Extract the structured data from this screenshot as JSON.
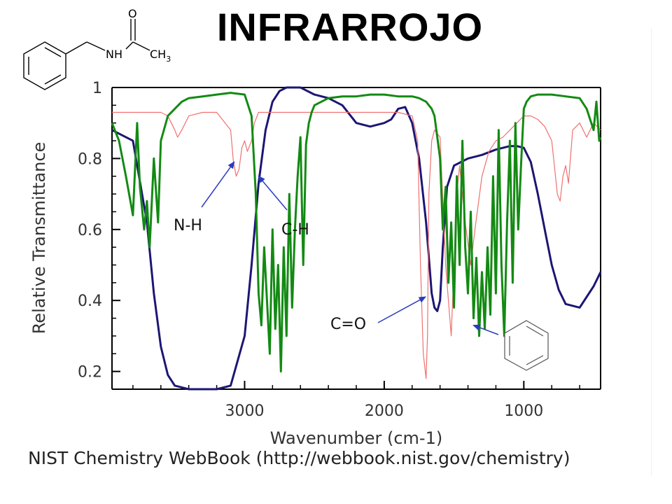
{
  "slide": {
    "title": "INFRARROJO",
    "source": "NIST Chemistry WebBook (http://webbook.nist.gov/chemistry)"
  },
  "molecule": {
    "atom_labels": {
      "oxygen": "O",
      "amine": "NH",
      "methyl": "CH",
      "methyl_subscript": "3"
    }
  },
  "chart_data": {
    "type": "line",
    "title": "",
    "xlabel": "Wavenumber (cm-1)",
    "ylabel": "Relative Transmittance",
    "xlim": [
      3950,
      450
    ],
    "ylim": [
      0.15,
      1.0
    ],
    "x_ticks": [
      3000,
      2000,
      1000
    ],
    "y_ticks": [
      0.2,
      0.4,
      0.6,
      0.8,
      1
    ],
    "y_tick_labels": [
      "0.2",
      "0.4",
      "0.6",
      "0.8",
      "1"
    ],
    "grid": false,
    "series": [
      {
        "color": "#1c1674",
        "x": [
          3950,
          3800,
          3700,
          3650,
          3600,
          3550,
          3500,
          3400,
          3300,
          3200,
          3100,
          3000,
          2950,
          2900,
          2850,
          2800,
          2750,
          2700,
          2600,
          2500,
          2400,
          2300,
          2200,
          2100,
          2000,
          1950,
          1900,
          1850,
          1800,
          1750,
          1700,
          1680,
          1660,
          1640,
          1620,
          1600,
          1580,
          1550,
          1500,
          1450,
          1400,
          1300,
          1200,
          1100,
          1050,
          1000,
          950,
          900,
          850,
          800,
          750,
          700,
          600,
          500,
          450
        ],
        "y": [
          0.88,
          0.85,
          0.62,
          0.42,
          0.27,
          0.19,
          0.16,
          0.15,
          0.15,
          0.15,
          0.16,
          0.3,
          0.5,
          0.73,
          0.88,
          0.96,
          0.99,
          1.0,
          1.0,
          0.98,
          0.97,
          0.95,
          0.9,
          0.89,
          0.9,
          0.91,
          0.94,
          0.945,
          0.9,
          0.8,
          0.62,
          0.52,
          0.42,
          0.38,
          0.37,
          0.4,
          0.55,
          0.72,
          0.78,
          0.79,
          0.8,
          0.81,
          0.825,
          0.835,
          0.835,
          0.83,
          0.79,
          0.7,
          0.6,
          0.5,
          0.43,
          0.39,
          0.38,
          0.44,
          0.48
        ]
      },
      {
        "color": "#f07070",
        "x": [
          3950,
          3800,
          3700,
          3600,
          3550,
          3500,
          3480,
          3450,
          3400,
          3300,
          3200,
          3100,
          3080,
          3060,
          3040,
          3020,
          3000,
          2980,
          2950,
          2930,
          2900,
          2850,
          2800,
          2700,
          2600,
          2400,
          2200,
          2000,
          1900,
          1800,
          1760,
          1740,
          1720,
          1700,
          1690,
          1680,
          1660,
          1640,
          1600,
          1560,
          1520,
          1500,
          1480,
          1460,
          1420,
          1380,
          1350,
          1300,
          1250,
          1200,
          1150,
          1100,
          1050,
          1000,
          950,
          900,
          850,
          800,
          760,
          740,
          720,
          700,
          680,
          650,
          600,
          550,
          500,
          450
        ],
        "y": [
          0.93,
          0.93,
          0.93,
          0.93,
          0.92,
          0.88,
          0.86,
          0.88,
          0.92,
          0.93,
          0.93,
          0.88,
          0.79,
          0.75,
          0.77,
          0.83,
          0.85,
          0.82,
          0.85,
          0.9,
          0.93,
          0.93,
          0.93,
          0.93,
          0.93,
          0.93,
          0.93,
          0.93,
          0.93,
          0.92,
          0.85,
          0.5,
          0.25,
          0.18,
          0.3,
          0.7,
          0.85,
          0.88,
          0.86,
          0.5,
          0.3,
          0.5,
          0.7,
          0.78,
          0.62,
          0.5,
          0.6,
          0.75,
          0.82,
          0.85,
          0.86,
          0.88,
          0.9,
          0.92,
          0.92,
          0.91,
          0.89,
          0.85,
          0.7,
          0.68,
          0.75,
          0.78,
          0.73,
          0.88,
          0.9,
          0.86,
          0.9,
          0.88
        ]
      },
      {
        "color": "#138a13",
        "x": [
          3950,
          3900,
          3850,
          3800,
          3770,
          3750,
          3720,
          3700,
          3680,
          3650,
          3620,
          3600,
          3550,
          3500,
          3450,
          3400,
          3300,
          3200,
          3100,
          3000,
          2950,
          2920,
          2900,
          2880,
          2860,
          2840,
          2820,
          2800,
          2780,
          2760,
          2740,
          2720,
          2700,
          2680,
          2660,
          2640,
          2620,
          2600,
          2580,
          2560,
          2540,
          2520,
          2500,
          2450,
          2400,
          2300,
          2200,
          2100,
          2000,
          1900,
          1850,
          1800,
          1750,
          1700,
          1660,
          1640,
          1600,
          1580,
          1560,
          1540,
          1520,
          1500,
          1480,
          1460,
          1440,
          1420,
          1400,
          1380,
          1360,
          1340,
          1320,
          1300,
          1280,
          1260,
          1240,
          1220,
          1200,
          1180,
          1160,
          1140,
          1120,
          1100,
          1080,
          1060,
          1040,
          1020,
          1000,
          980,
          950,
          900,
          800,
          700,
          600,
          550,
          500,
          480,
          460,
          450
        ],
        "y": [
          0.9,
          0.85,
          0.75,
          0.64,
          0.9,
          0.72,
          0.6,
          0.68,
          0.55,
          0.8,
          0.62,
          0.85,
          0.92,
          0.94,
          0.96,
          0.97,
          0.975,
          0.98,
          0.985,
          0.98,
          0.92,
          0.7,
          0.42,
          0.33,
          0.55,
          0.4,
          0.25,
          0.6,
          0.32,
          0.5,
          0.2,
          0.55,
          0.3,
          0.7,
          0.38,
          0.6,
          0.75,
          0.86,
          0.5,
          0.84,
          0.9,
          0.93,
          0.95,
          0.96,
          0.97,
          0.975,
          0.975,
          0.98,
          0.98,
          0.975,
          0.975,
          0.975,
          0.97,
          0.96,
          0.94,
          0.92,
          0.8,
          0.6,
          0.72,
          0.45,
          0.62,
          0.38,
          0.75,
          0.5,
          0.85,
          0.55,
          0.42,
          0.65,
          0.35,
          0.52,
          0.3,
          0.48,
          0.32,
          0.55,
          0.36,
          0.75,
          0.42,
          0.88,
          0.5,
          0.3,
          0.62,
          0.85,
          0.45,
          0.9,
          0.6,
          0.78,
          0.94,
          0.96,
          0.975,
          0.98,
          0.98,
          0.975,
          0.97,
          0.94,
          0.88,
          0.96,
          0.85,
          0.86
        ]
      }
    ],
    "annotations": [
      {
        "text": "N-H",
        "target_x": 3075,
        "target_y": 0.79
      },
      {
        "text": "C-H",
        "target_x": 2900,
        "target_y": 0.75
      },
      {
        "text": "C=O",
        "target_x": 1705,
        "target_y": 0.41
      },
      {
        "text": "",
        "target_x": 1360,
        "target_y": 0.33
      }
    ]
  }
}
